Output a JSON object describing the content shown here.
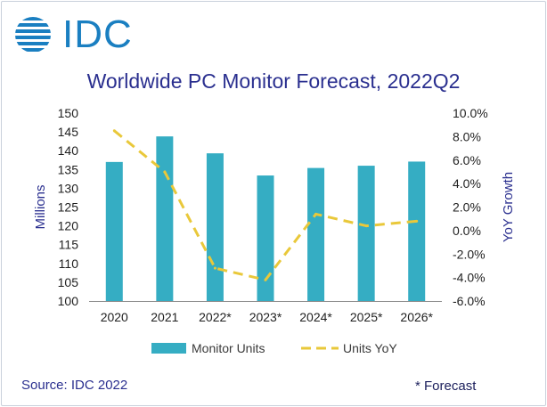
{
  "logo": {
    "text": "IDC"
  },
  "footer": {
    "source": "Source: IDC 2022",
    "forecast_note": "* Forecast"
  },
  "colors": {
    "bar": "#35adc3",
    "line": "#e9c83a",
    "title": "#2a2f8f",
    "logo": "#1a7fc1"
  },
  "chart_data": {
    "type": "bar",
    "title": "Worldwide PC Monitor Forecast, 2022Q2",
    "categories": [
      "2020",
      "2021",
      "2022*",
      "2023*",
      "2024*",
      "2025*",
      "2026*"
    ],
    "series": [
      {
        "name": "Monitor Units",
        "type": "bar",
        "axis": "left",
        "values": [
          137,
          143.8,
          139.3,
          133.4,
          135.4,
          136.0,
          137.1
        ]
      },
      {
        "name": "Units YoY",
        "type": "line",
        "style": "dashed",
        "axis": "right",
        "values": [
          8.5,
          5.0,
          -3.2,
          -4.2,
          1.4,
          0.4,
          0.8
        ]
      }
    ],
    "ylabel": "Millions",
    "y2label": "YoY Growth",
    "ylim": [
      100,
      150
    ],
    "y2lim": [
      -6,
      10
    ],
    "yticks": [
      "100",
      "105",
      "110",
      "115",
      "120",
      "125",
      "130",
      "135",
      "140",
      "145",
      "150"
    ],
    "y2ticks": [
      "-6.0%",
      "-4.0%",
      "-2.0%",
      "0.0%",
      "2.0%",
      "4.0%",
      "6.0%",
      "8.0%",
      "10.0%"
    ],
    "grid": false,
    "legend": "bottom"
  }
}
